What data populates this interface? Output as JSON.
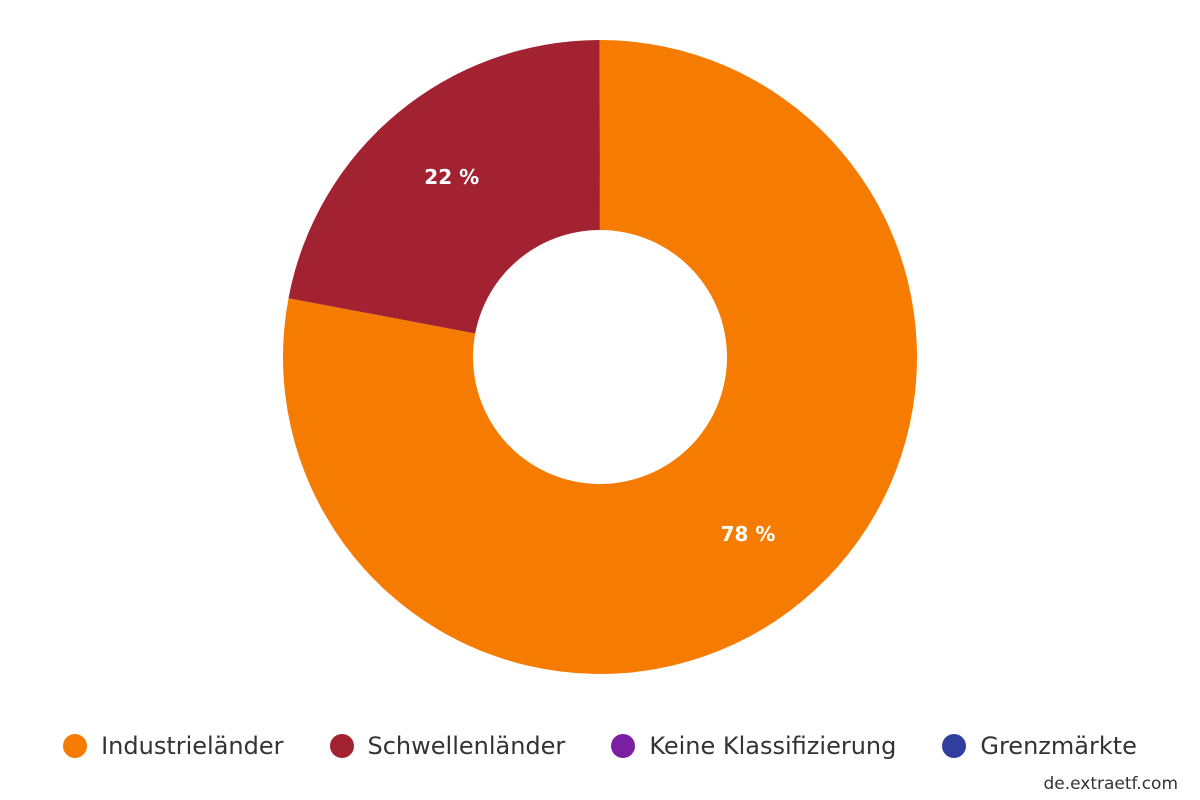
{
  "chart_data": {
    "type": "pie",
    "donut": true,
    "categories": [
      "Industrieländer",
      "Schwellenländer",
      "Keine Klassifizierung",
      "Grenzmärkte"
    ],
    "values": [
      78,
      22,
      0.03,
      0.01
    ],
    "value_labels": [
      "78 %",
      "22 %",
      "",
      ""
    ],
    "colors": [
      "#f57c00",
      "#a22232",
      "#7b1fa2",
      "#303f9f"
    ],
    "legend_position": "bottom",
    "title": ""
  },
  "credit": "de.extraetf.com"
}
